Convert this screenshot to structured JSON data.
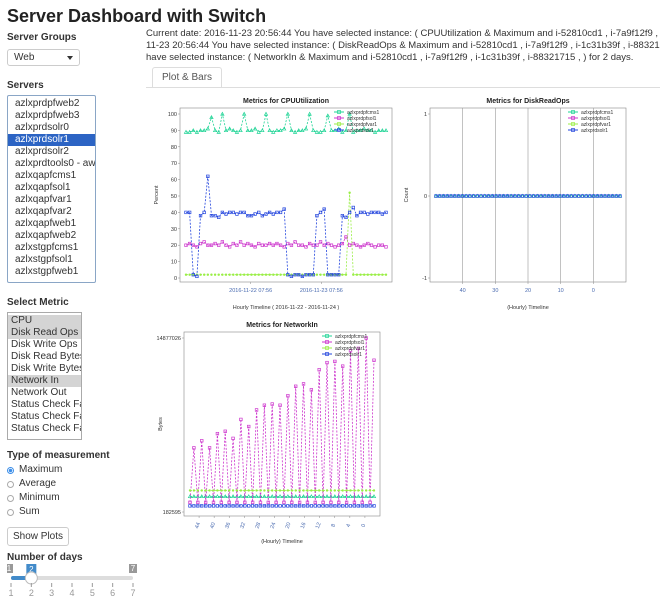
{
  "app": {
    "title": "Server Dashboard with Switch"
  },
  "server_groups": {
    "label": "Server Groups",
    "value": "Web"
  },
  "servers": {
    "label": "Servers",
    "items": [
      "azlxprdpfweb2",
      "azlxprdpfweb3",
      "azlxprdsolr0",
      "azlxprdsolr1",
      "azlxprdsolr2",
      "azlxprdtools0 - aws",
      "azlxqapfcms1",
      "azlxqapfsol1",
      "azlxqapfvar1",
      "azlxqapfvar2",
      "azlxqapfweb1",
      "azlxqapfweb2",
      "azlxstgpfcms1",
      "azlxstgpfsol1",
      "azlxstgpfweb1"
    ],
    "selected": "azlxprdsolr1"
  },
  "metric": {
    "label": "Select Metric",
    "items": [
      "CPU",
      "Disk Read Ops",
      "Disk Write Ops",
      "Disk Read Bytes",
      "Disk Write Bytes",
      "Network In",
      "Network Out",
      "Status Check Fa",
      "Status Check Fa",
      "Status Check Fa"
    ],
    "selected": [
      "CPU",
      "Disk Read Ops",
      "Network In"
    ]
  },
  "measurement": {
    "label": "Type of measurement",
    "options": [
      "Maximum",
      "Average",
      "Minimum",
      "Sum"
    ],
    "selected": "Maximum"
  },
  "show_plots_label": "Show Plots",
  "days": {
    "label": "Number of days",
    "min": 1,
    "max": 7,
    "value": 2,
    "ticks": [
      "1",
      "2",
      "3",
      "4",
      "5",
      "6",
      "7"
    ]
  },
  "header_lines": [
    "Current date: 2016-11-23 20:56:44 You have selected instance: ( CPUUtilization & Maximum and i-52810cd1 , i-7a9f12f9 , i-1c31",
    "11-23 20:56:44 You have selected instance: ( DiskReadOps & Maximum and i-52810cd1 , i-7a9f12f9 , i-1c31b39f , i-88321715 , )",
    "have selected instance: ( NetworkIn & Maximum and i-52810cd1 , i-7a9f12f9 , i-1c31b39f , i-88321715 , ) for 2 days."
  ],
  "tab": {
    "label": "Plot & Bars"
  },
  "legend_series": [
    "azlxprdpfcms1",
    "azlxprdpfsol1",
    "azlxprdpfvar1",
    "azlxprdsolr1"
  ],
  "colors": {
    "cms": "#1ed495",
    "sol": "#cc33cc",
    "var": "#99ee44",
    "solr": "#2244dd",
    "accent": "#2c64c4"
  },
  "chart_data": [
    {
      "type": "line",
      "title": "Metrics for  CPUUtilization",
      "ylabel": "Percent",
      "xlabel": "Hourly Timeline ( 2016-11-22 - 2016-11-24 )",
      "x_ticks": [
        "2016-11-22 07:56",
        "2016-11-23 07:56"
      ],
      "y_ticks": [
        "0",
        "10",
        "20",
        "30",
        "40",
        "50",
        "60",
        "70",
        "80",
        "90",
        "100"
      ],
      "ylim": [
        0,
        100
      ],
      "series": [
        {
          "name": "azlxprdpfcms1",
          "values": [
            89,
            89,
            90,
            89,
            90,
            90,
            91,
            98,
            90,
            89,
            100,
            90,
            91,
            90,
            89,
            90,
            100,
            90,
            90,
            91,
            89,
            90,
            100,
            90,
            89,
            90,
            90,
            91,
            100,
            90,
            89,
            90,
            90,
            91,
            100,
            90,
            89,
            89,
            90,
            99,
            90,
            90,
            91,
            89,
            90,
            100,
            89,
            90,
            90,
            91,
            90,
            90,
            89,
            90,
            90,
            90
          ]
        },
        {
          "name": "azlxprdpfsol1",
          "values": [
            20,
            21,
            20,
            19,
            21,
            22,
            20,
            20,
            21,
            20,
            22,
            20,
            19,
            21,
            20,
            22,
            20,
            21,
            20,
            19,
            21,
            20,
            20,
            21,
            20,
            21,
            20,
            19,
            21,
            20,
            22,
            20,
            20,
            19,
            21,
            20,
            20,
            22,
            20,
            21,
            20,
            19,
            20,
            21,
            25,
            20,
            21,
            20,
            19,
            20,
            21,
            20,
            19,
            20,
            20,
            19
          ]
        },
        {
          "name": "azlxprdpfvar1",
          "values": [
            2,
            2,
            2,
            2,
            2,
            2,
            2,
            2,
            2,
            2,
            2,
            2,
            2,
            2,
            2,
            2,
            2,
            2,
            2,
            2,
            2,
            2,
            2,
            2,
            2,
            2,
            2,
            2,
            2,
            2,
            2,
            2,
            2,
            2,
            2,
            2,
            2,
            2,
            2,
            2,
            2,
            2,
            2,
            2,
            2,
            52,
            2,
            2,
            2,
            2,
            2,
            2,
            2,
            2,
            2,
            2
          ]
        },
        {
          "name": "azlxprdsolr1",
          "values": [
            40,
            40,
            2,
            1,
            38,
            40,
            62,
            38,
            38,
            37,
            40,
            39,
            40,
            40,
            39,
            40,
            40,
            38,
            38,
            39,
            40,
            38,
            39,
            40,
            39,
            40,
            40,
            42,
            2,
            1,
            2,
            2,
            1,
            2,
            2,
            2,
            38,
            40,
            42,
            2,
            2,
            2,
            2,
            38,
            37,
            40,
            43,
            38,
            40,
            40,
            39,
            40,
            40,
            40,
            39,
            40
          ]
        }
      ]
    },
    {
      "type": "line",
      "title": "Metrics for  DiskReadOps",
      "ylabel": "Count",
      "xlabel": "(Hourly) Timeline",
      "x_ticks": [
        "40",
        "30",
        "20",
        "10",
        "0"
      ],
      "y_ticks": [
        "-1",
        "0",
        "1"
      ],
      "ylim": [
        -1,
        1
      ],
      "series": [
        {
          "name": "azlxprdpfcms1",
          "values": [
            0,
            0,
            0,
            0,
            0,
            0,
            0,
            0,
            0,
            0,
            0,
            0,
            0,
            0,
            0,
            0,
            0,
            0,
            0,
            0,
            0,
            0,
            0,
            0,
            0,
            0,
            0,
            0,
            0,
            0,
            0,
            0,
            0,
            0,
            0,
            0,
            0,
            0,
            0,
            0,
            0,
            0,
            0,
            0,
            0,
            0,
            0,
            0,
            0,
            0
          ]
        },
        {
          "name": "azlxprdsolr1",
          "values": [
            0,
            0,
            0,
            0,
            0,
            0,
            0,
            0,
            0,
            0,
            0,
            0,
            0,
            0,
            0,
            0,
            0,
            0,
            0,
            0,
            0,
            0,
            0,
            0,
            0,
            0,
            0,
            0,
            0,
            0,
            0,
            0,
            0,
            0,
            0,
            0,
            0,
            0,
            0,
            0,
            0,
            0,
            0,
            0,
            0,
            0,
            0,
            0,
            0,
            0
          ]
        }
      ]
    },
    {
      "type": "line",
      "title": "Metrics for  NetworkIn",
      "ylabel": "Bytes",
      "xlabel": "(Hourly) Timeline",
      "x_ticks": [
        "44",
        "40",
        "36",
        "32",
        "28",
        "24",
        "20",
        "16",
        "12",
        "8",
        "4",
        "0"
      ],
      "y_ticks": [
        "182595",
        "14877026"
      ],
      "ylim": [
        182595,
        14877026
      ],
      "series": [
        {
          "name": "azlxprdpfcms1",
          "values": [
            1500000,
            1500000,
            1500000,
            1500000,
            1500000,
            1500000,
            1500000,
            1500000,
            1500000,
            1500000,
            1500000,
            1500000,
            1500000,
            1500000,
            1500000,
            1500000,
            1500000,
            1500000,
            1500000,
            1500000,
            1500000,
            1500000,
            1500000,
            1500000,
            1500000,
            1500000,
            1500000,
            1500000,
            1500000,
            1500000,
            1500000,
            1500000,
            1500000,
            1500000,
            1500000,
            1500000,
            1500000,
            1500000,
            1500000,
            1500000,
            1500000,
            1500000,
            1500000,
            1500000,
            1500000,
            1500000,
            1500000,
            1500000
          ]
        },
        {
          "name": "azlxprdpfsol1",
          "values": [
            1000000,
            5600000,
            1000000,
            6200000,
            1000000,
            5600000,
            1000000,
            6800000,
            1000000,
            7000000,
            1000000,
            6400000,
            1000000,
            8000000,
            1000000,
            7400000,
            1000000,
            8800000,
            1000000,
            9200000,
            1000000,
            9300000,
            1000000,
            9200000,
            1000000,
            10000000,
            1000000,
            10800000,
            1000000,
            11000000,
            1000000,
            10500000,
            1000000,
            12200000,
            1000000,
            12800000,
            1000000,
            12900000,
            1000000,
            12500000,
            1000000,
            13800000,
            1000000,
            14000000,
            1000000,
            14877026,
            1000000,
            13000000
          ]
        },
        {
          "name": "azlxprdpfvar1",
          "values": [
            2000000,
            2000000,
            2000000,
            2000000,
            2000000,
            2000000,
            2000000,
            2000000,
            2000000,
            2000000,
            2000000,
            2000000,
            2000000,
            2000000,
            2000000,
            2000000,
            2000000,
            2000000,
            2000000,
            2000000,
            2000000,
            2000000,
            2000000,
            2000000,
            2000000,
            2000000,
            2000000,
            2000000,
            2000000,
            2000000,
            2000000,
            2000000,
            2000000,
            2000000,
            2000000,
            2000000,
            2000000,
            2000000,
            2000000,
            2000000,
            2000000,
            2000000,
            2000000,
            2000000,
            2000000,
            2000000,
            2000000,
            2000000
          ]
        },
        {
          "name": "azlxprdsolr1",
          "values": [
            700000,
            700000,
            700000,
            700000,
            700000,
            700000,
            700000,
            700000,
            700000,
            700000,
            700000,
            700000,
            700000,
            700000,
            700000,
            700000,
            700000,
            700000,
            700000,
            700000,
            700000,
            700000,
            700000,
            700000,
            700000,
            700000,
            700000,
            700000,
            700000,
            700000,
            700000,
            700000,
            700000,
            700000,
            700000,
            700000,
            700000,
            700000,
            700000,
            700000,
            700000,
            700000,
            700000,
            700000,
            700000,
            700000,
            700000,
            700000
          ]
        }
      ]
    }
  ]
}
